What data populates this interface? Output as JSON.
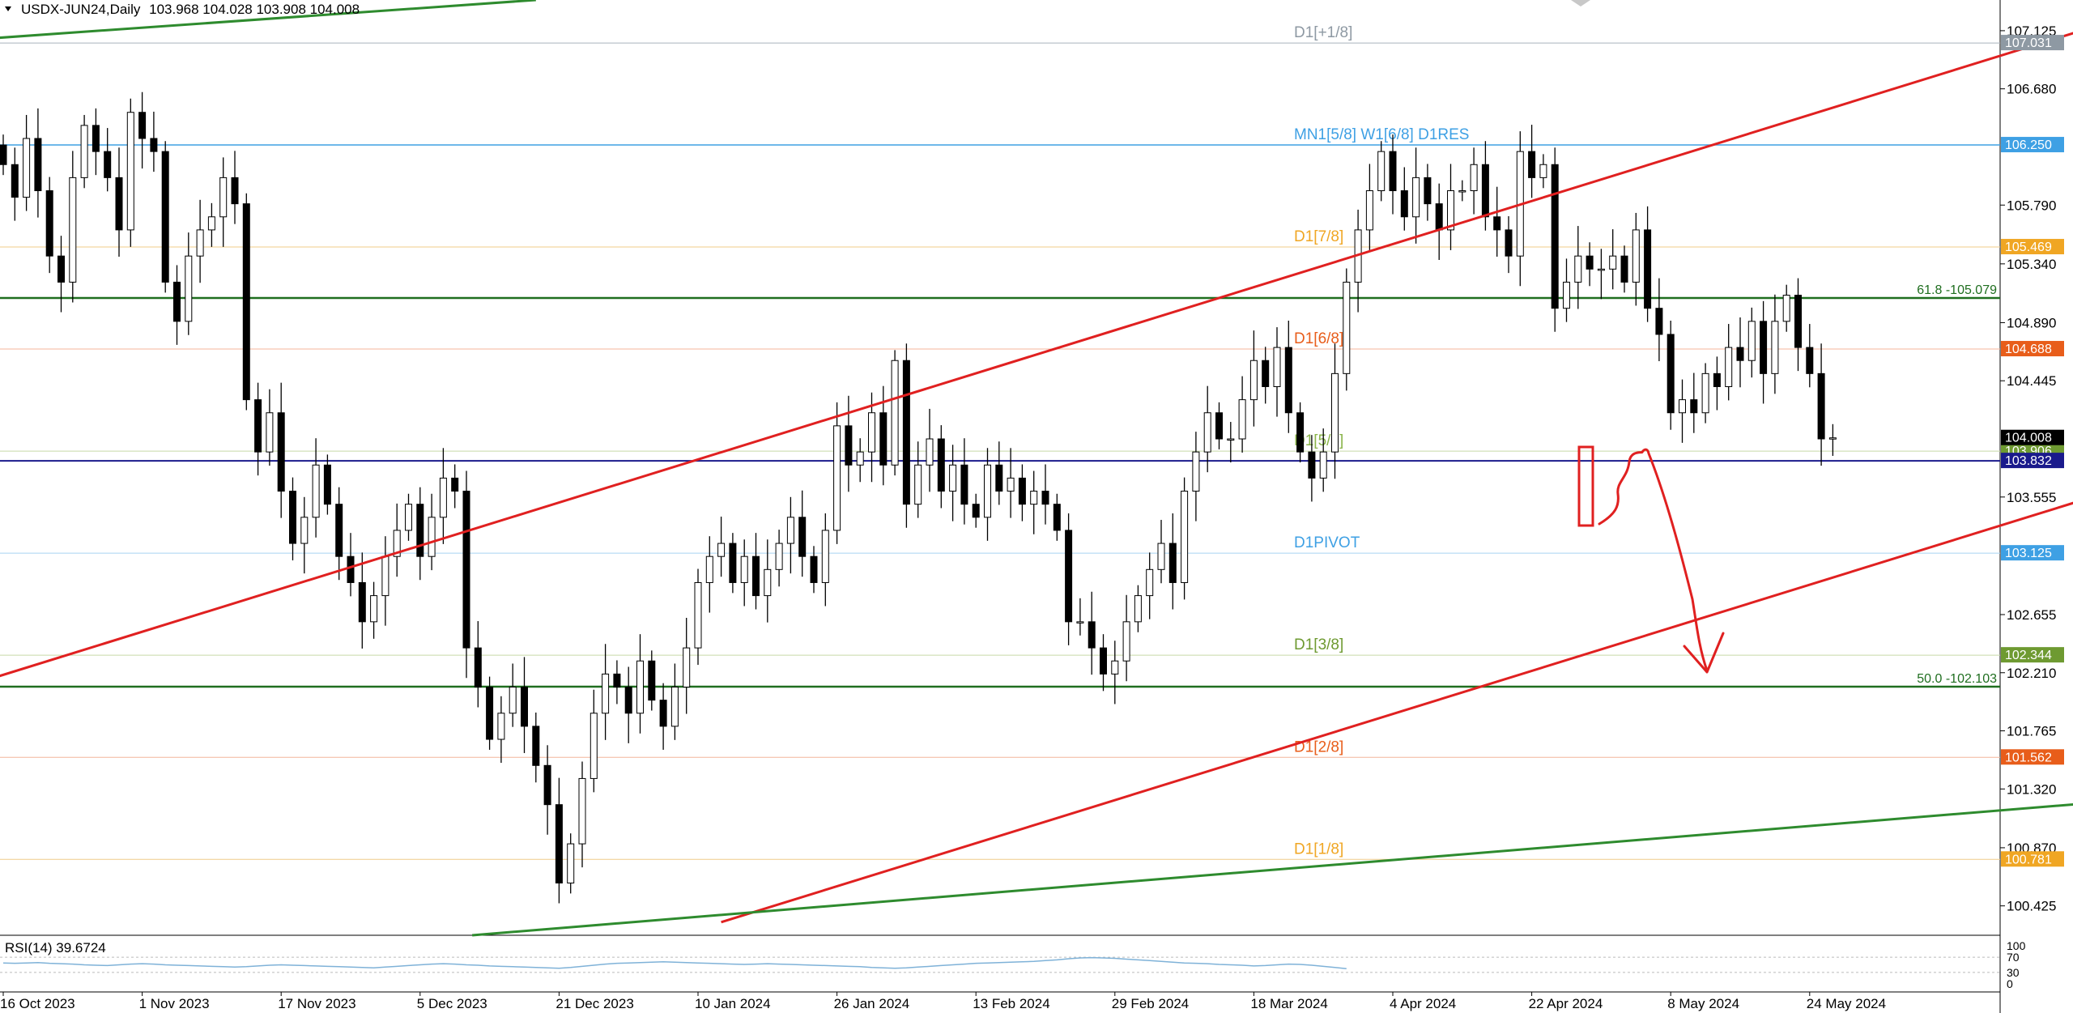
{
  "header": {
    "symbol": "USDX-JUN24,Daily",
    "ohlc": "103.968 104.028 103.908 104.008"
  },
  "rsi": {
    "label": "RSI(14) 39.6724",
    "levels": [
      "100",
      "70",
      "30",
      "0"
    ],
    "values": [
      55,
      54,
      55,
      56,
      54,
      53,
      52,
      50,
      49,
      48,
      50,
      52,
      53,
      52,
      50,
      49,
      48,
      47,
      46,
      45,
      44,
      45,
      47,
      49,
      50,
      49,
      48,
      47,
      46,
      45,
      44,
      43,
      42,
      44,
      46,
      48,
      50,
      52,
      53,
      52,
      50,
      49,
      47,
      46,
      45,
      44,
      43,
      42,
      41,
      43,
      46,
      49,
      52,
      54,
      55,
      56,
      57,
      58,
      57,
      56,
      55,
      54,
      53,
      52,
      51,
      52,
      53,
      52,
      51,
      50,
      49,
      48,
      47,
      46,
      45,
      43,
      42,
      41,
      42,
      44,
      46,
      48,
      50,
      52,
      54,
      55,
      56,
      57,
      58,
      59,
      61,
      63,
      66,
      68,
      69,
      68,
      67,
      65,
      63,
      61,
      59,
      57,
      55,
      54,
      53,
      51,
      50,
      49,
      47,
      48,
      50,
      52,
      51,
      49,
      46,
      43,
      40
    ]
  },
  "chart_data": {
    "type": "candlestick",
    "symbol": "USDX-JUN24",
    "timeframe": "Daily",
    "ylim": [
      100.2,
      107.36
    ],
    "y_ticks": [
      "107.125",
      "106.680",
      "105.790",
      "105.340",
      "104.890",
      "104.445",
      "103.555",
      "102.655",
      "102.210",
      "101.765",
      "101.320",
      "100.870",
      "100.425"
    ],
    "x_ticks": [
      {
        "label": "16 Oct 2023",
        "index": 0
      },
      {
        "label": "1 Nov 2023",
        "index": 12
      },
      {
        "label": "17 Nov 2023",
        "index": 24
      },
      {
        "label": "5 Dec 2023",
        "index": 36
      },
      {
        "label": "21 Dec 2023",
        "index": 48
      },
      {
        "label": "10 Jan 2024",
        "index": 60
      },
      {
        "label": "26 Jan 2024",
        "index": 72
      },
      {
        "label": "13 Feb 2024",
        "index": 84
      },
      {
        "label": "29 Feb 2024",
        "index": 96
      },
      {
        "label": "18 Mar 2024",
        "index": 108
      },
      {
        "label": "4 Apr 2024",
        "index": 120
      },
      {
        "label": "22 Apr 2024",
        "index": 132
      },
      {
        "label": "8 May 2024",
        "index": 144
      },
      {
        "label": "24 May 2024",
        "index": 156
      }
    ],
    "close": [
      106.1,
      105.85,
      106.3,
      105.9,
      105.4,
      105.2,
      106.0,
      106.4,
      106.2,
      106.0,
      105.6,
      106.5,
      106.3,
      106.2,
      105.2,
      104.9,
      105.4,
      105.6,
      105.7,
      106.0,
      105.8,
      104.3,
      103.9,
      104.2,
      103.6,
      103.2,
      103.4,
      103.8,
      103.5,
      103.1,
      102.9,
      102.6,
      102.8,
      103.1,
      103.3,
      103.5,
      103.1,
      103.4,
      103.7,
      103.6,
      102.4,
      102.1,
      101.7,
      101.9,
      102.1,
      101.8,
      101.5,
      101.2,
      100.6,
      100.9,
      101.4,
      101.9,
      102.2,
      102.1,
      101.9,
      102.3,
      102.0,
      101.8,
      102.1,
      102.4,
      102.9,
      103.1,
      103.2,
      102.9,
      103.1,
      102.8,
      103.0,
      103.2,
      103.4,
      103.1,
      102.9,
      103.3,
      104.1,
      103.8,
      103.9,
      104.2,
      103.8,
      104.6,
      103.5,
      103.8,
      104.0,
      103.6,
      103.8,
      103.5,
      103.4,
      103.8,
      103.6,
      103.7,
      103.5,
      103.6,
      103.5,
      103.3,
      102.6,
      102.6,
      102.4,
      102.2,
      102.3,
      102.6,
      102.8,
      103.0,
      103.2,
      102.9,
      103.6,
      103.9,
      104.2,
      104.0,
      104.0,
      104.3,
      104.6,
      104.4,
      104.7,
      104.2,
      103.9,
      103.7,
      103.9,
      104.5,
      105.2,
      105.6,
      105.9,
      106.2,
      105.9,
      105.7,
      106.0,
      105.8,
      105.6,
      105.9,
      105.9,
      106.1,
      105.7,
      105.6,
      105.4,
      106.2,
      106.0,
      106.1,
      105.0,
      105.2,
      105.4,
      105.3,
      105.3,
      105.4,
      105.2,
      105.6,
      105.0,
      104.8,
      104.2,
      104.3,
      104.2,
      104.5,
      104.4,
      104.7,
      104.6,
      104.9,
      104.5,
      104.9,
      105.1,
      104.7,
      104.5,
      104.0,
      104.008
    ],
    "mm_levels": [
      {
        "label": "D1[+1/8]",
        "value": 107.031,
        "price_tag": "107.031",
        "color": "#a9b3bc",
        "text_color": "#8e99a3",
        "tag_bg": "#8e99a3"
      },
      {
        "label": "MN1[5/8] W1[6/8] D1RES",
        "value": 106.25,
        "price_tag": "106.250",
        "color": "#3ea0e4",
        "text_color": "#3ea0e4",
        "tag_bg": "#3ea0e4"
      },
      {
        "label": "D1[7/8]",
        "value": 105.469,
        "price_tag": "105.469",
        "color": "#f0cc8a",
        "text_color": "#f0a623",
        "tag_bg": "#f0a623"
      },
      {
        "label": "D1[6/8]",
        "value": 104.688,
        "price_tag": "104.688",
        "color": "#f4b59b",
        "text_color": "#e85d1a",
        "tag_bg": "#e85d1a"
      },
      {
        "label": "D1[5/8]",
        "value": 103.906,
        "price_tag": "103.906",
        "color": "#c6d9a8",
        "text_color": "#8ab44a",
        "tag_bg": "#6e9a31"
      },
      {
        "label": "D1PIVOT",
        "value": 103.125,
        "price_tag": "103.125",
        "color": "#a8d4f2",
        "text_color": "#3ea0e4",
        "tag_bg": "#3ea0e4"
      },
      {
        "label": "D1[3/8]",
        "value": 102.344,
        "price_tag": "102.344",
        "color": "#c6d9a8",
        "text_color": "#6e9a31",
        "tag_bg": "#6e9a31"
      },
      {
        "label": "D1[2/8]",
        "value": 101.562,
        "price_tag": "101.562",
        "color": "#f4b59b",
        "text_color": "#e85d1a",
        "tag_bg": "#e85d1a"
      },
      {
        "label": "D1[1/8]",
        "value": 100.781,
        "price_tag": "100.781",
        "color": "#f0cc8a",
        "text_color": "#f0a623",
        "tag_bg": "#f0a623"
      }
    ],
    "fib_levels": [
      {
        "label": "61.8 -105.079",
        "value": 105.079
      },
      {
        "label": "50.0 -102.103",
        "value": 102.103
      }
    ],
    "price_tags": [
      {
        "label": "104.008",
        "value": 104.008,
        "bg": "#000000"
      },
      {
        "label": "103.832",
        "value": 103.832,
        "bg": "#1a1a8c"
      }
    ],
    "trendlines": [
      {
        "name": "channel-upper",
        "color": "#e02020",
        "from": [
          -0.5,
          102.18
        ],
        "to": [
          188,
          107.36
        ]
      },
      {
        "name": "channel-lower",
        "color": "#e02020",
        "from": [
          62,
          100.3
        ],
        "to": [
          249,
          105.44
        ]
      },
      {
        "name": "support-rising",
        "color": "#2e8b2e",
        "from": [
          40.5,
          100.2
        ],
        "to": [
          249,
          101.71
        ]
      },
      {
        "name": "resistance-top",
        "color": "#2e8b2e",
        "from": [
          -0.5,
          107.07
        ],
        "to": [
          46,
          107.36
        ]
      }
    ],
    "horizontal": {
      "value": 103.832,
      "color": "#1a1a8c"
    }
  }
}
